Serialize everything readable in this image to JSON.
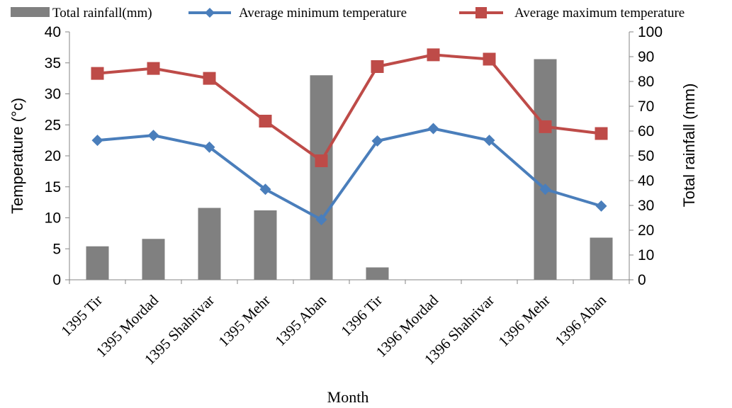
{
  "chart_data": {
    "type": "bar",
    "categories": [
      "1395 Tir",
      "1395 Mordad",
      "1395 Shahrivar",
      "1395 Mehr",
      "1395 Aban",
      "1396 Tir",
      "1396 Mordad",
      "1396 Shahrivar",
      "1396 Mehr",
      "1396 Aban"
    ],
    "series": [
      {
        "name": "Total rainfall(mm)",
        "type": "bar",
        "axis": "right",
        "color": "#808080",
        "values": [
          13.5,
          16.5,
          29,
          28,
          82.5,
          5,
          0,
          0,
          89,
          17
        ]
      },
      {
        "name": "Average minimum temperature",
        "type": "line",
        "axis": "left",
        "color": "#4a7ebb",
        "marker": "diamond",
        "values": [
          22.5,
          23.3,
          21.4,
          14.6,
          9.7,
          22.4,
          24.4,
          22.5,
          14.6,
          11.9
        ]
      },
      {
        "name": "Average maximum temperature",
        "type": "line",
        "axis": "left",
        "color": "#be4b48",
        "marker": "square",
        "values": [
          33.3,
          34.1,
          32.5,
          25.6,
          19.2,
          34.4,
          36.3,
          35.6,
          24.7,
          23.6
        ]
      }
    ],
    "xlabel": "Month",
    "ylabel": "Temperature (°c)",
    "y2label": "Total rainfall (mm)",
    "ylim": [
      0,
      40
    ],
    "y2lim": [
      0,
      100
    ],
    "yticks": [
      "0",
      "5",
      "10",
      "15",
      "20",
      "25",
      "30",
      "35",
      "40"
    ],
    "y2ticks": [
      "0",
      "10",
      "20",
      "30",
      "40",
      "50",
      "60",
      "70",
      "80",
      "90",
      "100"
    ],
    "grid": false,
    "legend_position": "top"
  }
}
